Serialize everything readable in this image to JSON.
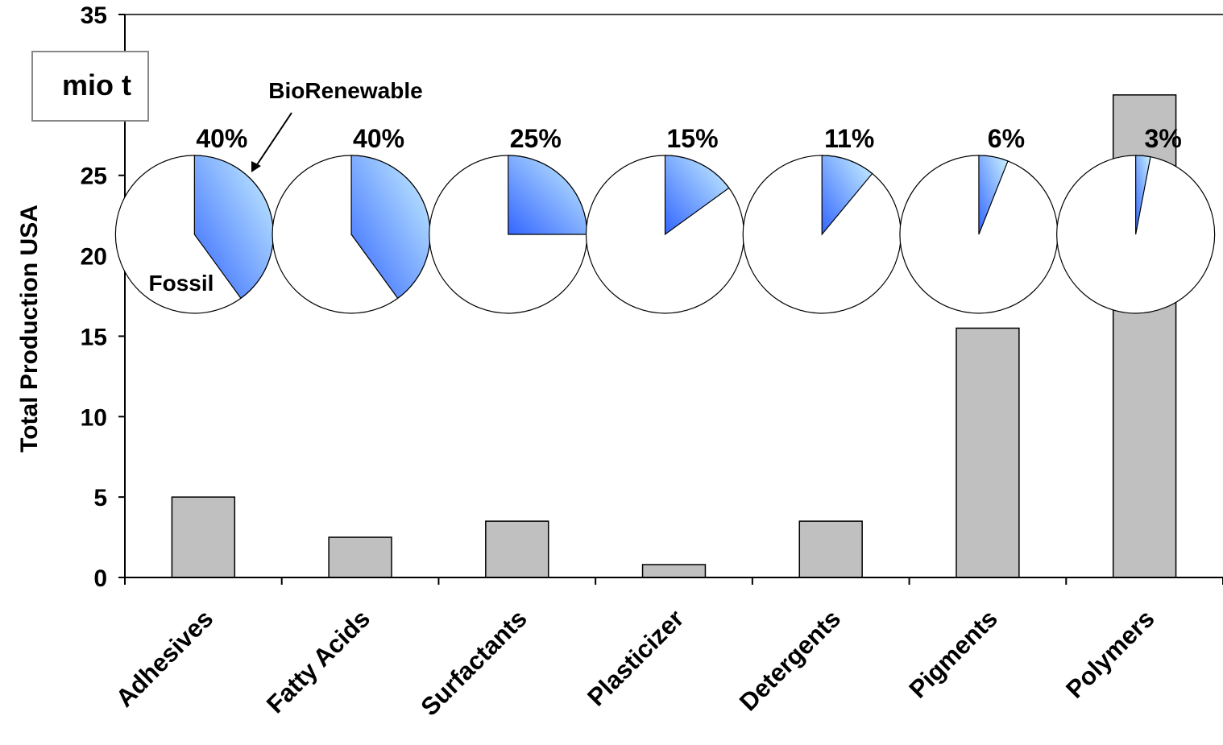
{
  "chart_data": {
    "type": "bar",
    "ylabel": "Total Production USA",
    "unit_label": "mio t",
    "ylim": [
      0,
      35
    ],
    "yticks": [
      0,
      5,
      10,
      15,
      20,
      25,
      35
    ],
    "categories": [
      "Adhesives",
      "Fatty Acids",
      "Surfactants",
      "Plasticizer",
      "Detergents",
      "Pigments",
      "Polymers"
    ],
    "values": [
      5,
      2.5,
      3.5,
      0.8,
      3.5,
      15.5,
      30
    ],
    "bar_color": "#c0c0c0",
    "renewable_share": {
      "labels": [
        "40%",
        "40%",
        "25%",
        "15%",
        "11%",
        "6%",
        "3%"
      ],
      "values": [
        40,
        40,
        25,
        15,
        11,
        6,
        3
      ],
      "slice_colors": [
        "#3366ff",
        "#ccf4ff"
      ]
    },
    "annotations": {
      "renewable": "BioRenewable",
      "fossil": "Fossil"
    },
    "grid": false
  }
}
